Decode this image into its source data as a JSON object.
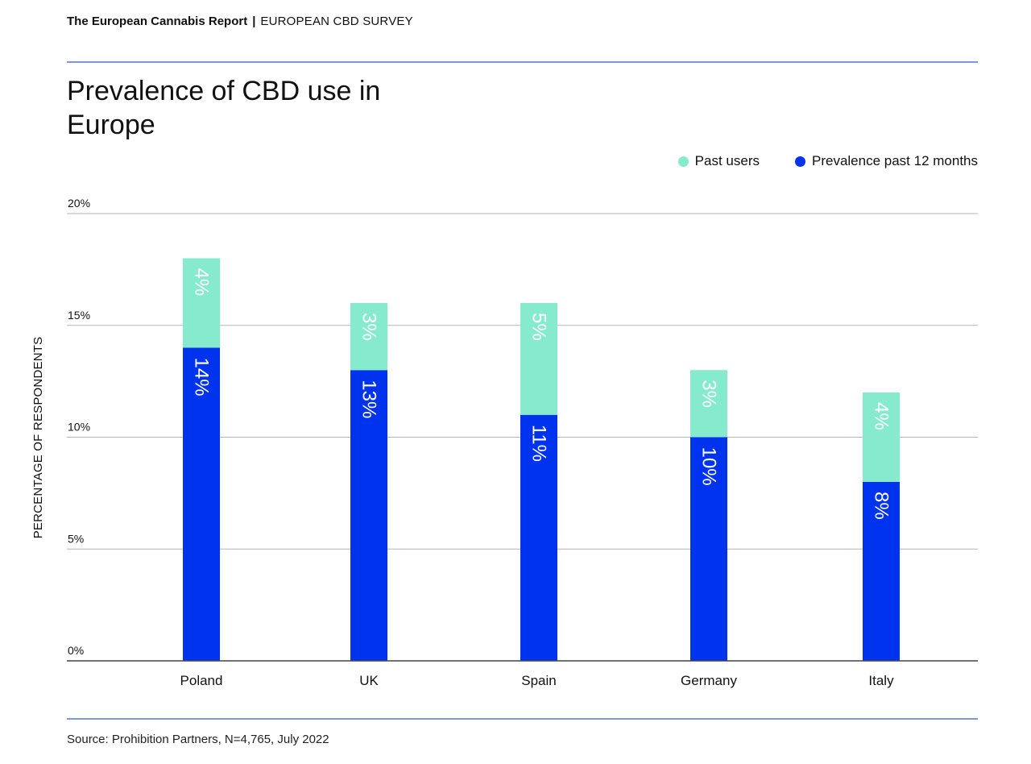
{
  "header": {
    "report": "The European Cannabis Report",
    "separator": "|",
    "survey": "EUROPEAN CBD SURVEY"
  },
  "colors": {
    "rule": "#7f95e8",
    "past_users": "#86ebcc",
    "prevalence": "#0033ee",
    "grid": "#b5b5b5",
    "axis": "#444444"
  },
  "source": "Source: Prohibition Partners, N=4,765, July 2022",
  "chart_data": {
    "type": "bar",
    "stacked": true,
    "title": "Prevalence of CBD use in Europe",
    "ylabel": "PERCENTAGE OF RESPONDENTS",
    "xlabel": "",
    "ylim": [
      0,
      20
    ],
    "yticks": [
      0,
      5,
      10,
      15,
      20
    ],
    "ytick_labels": [
      "0%",
      "5%",
      "10%",
      "15%",
      "20%"
    ],
    "grid": true,
    "legend_position": "top-right",
    "categories": [
      "Poland",
      "UK",
      "Spain",
      "Germany",
      "Italy"
    ],
    "series": [
      {
        "name": "Prevalence past 12 months",
        "values": [
          14,
          13,
          11,
          10,
          8
        ],
        "labels": [
          "14%",
          "13%",
          "11%",
          "10%",
          "8%"
        ],
        "color": "#0033ee"
      },
      {
        "name": "Past users",
        "values": [
          4,
          3,
          5,
          3,
          4
        ],
        "labels": [
          "4%",
          "3%",
          "5%",
          "3%",
          "4%"
        ],
        "color": "#86ebcc"
      }
    ]
  }
}
